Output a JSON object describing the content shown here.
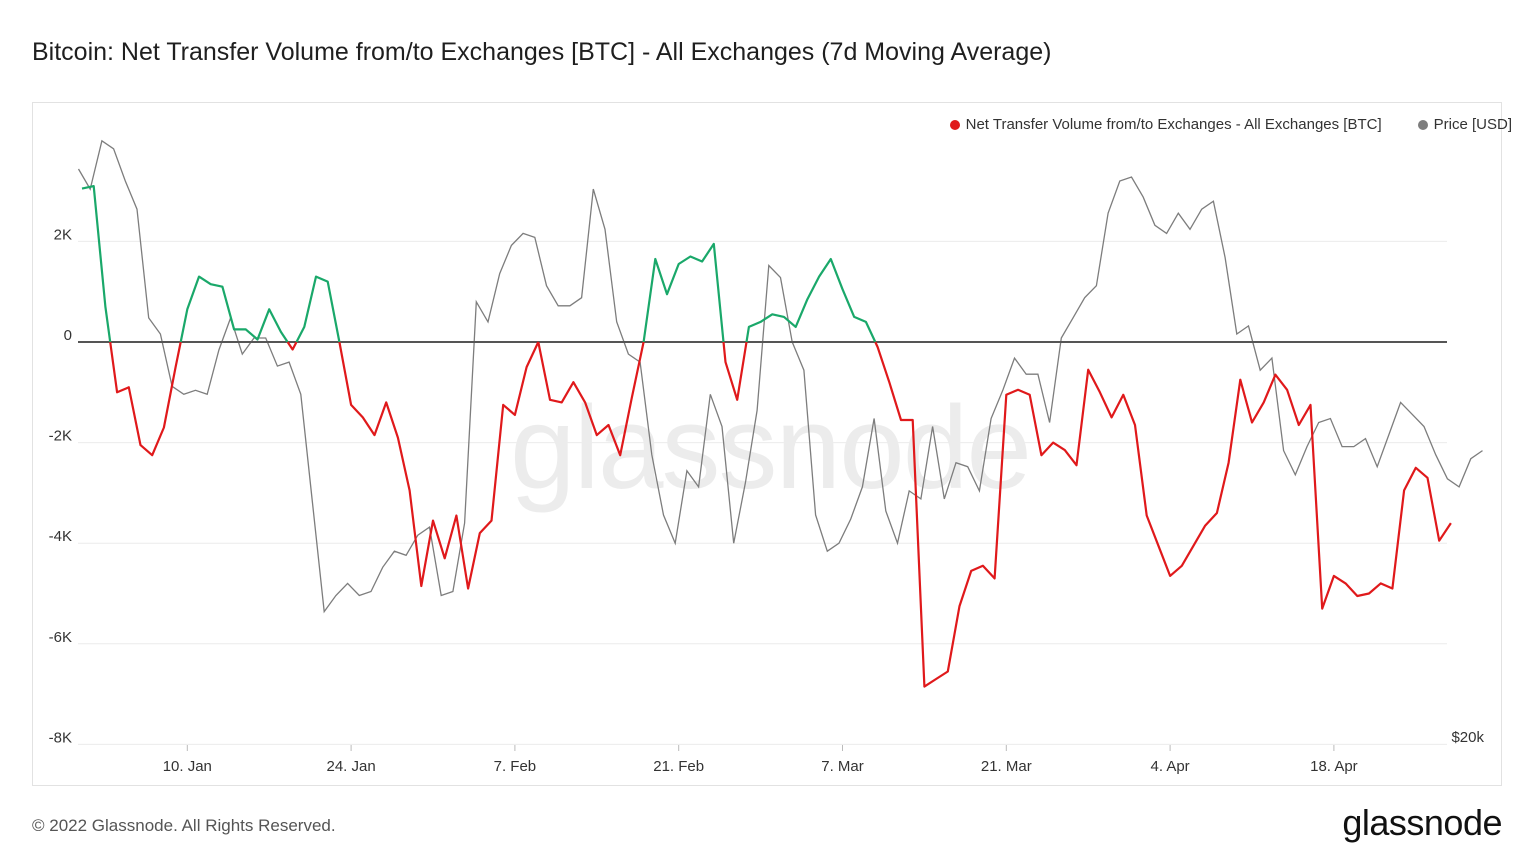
{
  "title": "Bitcoin: Net Transfer Volume from/to Exchanges [BTC] - All Exchanges (7d Moving Average)",
  "legend": [
    {
      "label": "Net Transfer Volume from/to Exchanges - All Exchanges [BTC]",
      "color": "#e0191b"
    },
    {
      "label": "Price [USD]",
      "color": "#7d7d7d"
    }
  ],
  "footer": "© 2022 Glassnode. All Rights Reserved.",
  "brand": "glassnode",
  "watermark": "glassnode",
  "chart_data": {
    "type": "line",
    "x_start": "2022-01-01",
    "x_tick_labels": [
      "10. Jan",
      "24. Jan",
      "7. Feb",
      "21. Feb",
      "7. Mar",
      "21. Mar",
      "4. Apr",
      "18. Apr"
    ],
    "x_tick_dates": [
      "2022-01-10",
      "2022-01-24",
      "2022-02-07",
      "2022-02-21",
      "2022-03-07",
      "2022-03-21",
      "2022-04-04",
      "2022-04-18"
    ],
    "y_ticks": [
      2000,
      0,
      -2000,
      -4000,
      -6000,
      -8000
    ],
    "y_tick_labels": [
      "2K",
      "0",
      "-2K",
      "-4K",
      "-6K",
      "-8K"
    ],
    "ylim": [
      -8000,
      3900
    ],
    "right_axis_label": "$20k",
    "positive_color": "#1aa86a",
    "negative_color": "#e0191b",
    "price_color": "#7d7d7d",
    "zero_line_color": "#555555",
    "series": [
      {
        "name": "Net Transfer Volume from/to Exchanges - All Exchanges [BTC]",
        "values": [
          3050,
          3100,
          700,
          -1000,
          -900,
          -2050,
          -2250,
          -1700,
          -500,
          650,
          1300,
          1150,
          1100,
          250,
          250,
          50,
          650,
          200,
          -150,
          300,
          1300,
          1200,
          0,
          -1250,
          -1500,
          -1850,
          -1200,
          -1900,
          -2950,
          -4850,
          -3550,
          -4300,
          -3450,
          -4900,
          -3800,
          -3550,
          -1250,
          -1450,
          -500,
          0,
          -1150,
          -1200,
          -800,
          -1200,
          -1850,
          -1650,
          -2250,
          -1100,
          0,
          1650,
          950,
          1550,
          1700,
          1600,
          1950,
          -400,
          -1150,
          300,
          400,
          550,
          500,
          300,
          850,
          1300,
          1650,
          1050,
          500,
          400,
          -100,
          -800,
          -1550,
          -1550,
          -6850,
          -6700,
          -6550,
          -5250,
          -4550,
          -4450,
          -4700,
          -1050,
          -950,
          -1050,
          -2250,
          -2000,
          -2150,
          -2450,
          -550,
          -1000,
          -1500,
          -1050,
          -1650,
          -3450,
          -4050,
          -4650,
          -4450,
          -4050,
          -3650,
          -3400,
          -2400,
          -750,
          -1600,
          -1200,
          -650,
          -950,
          -1650,
          -1250,
          -5300,
          -4650,
          -4800,
          -5050,
          -5000,
          -4800,
          -4900,
          -2950,
          -2500,
          -2700,
          -3950,
          -3600
        ]
      },
      {
        "name": "Price [USD]",
        "values": [
          47300,
          46800,
          48000,
          47800,
          47000,
          46300,
          43600,
          43200,
          41900,
          41700,
          41800,
          41700,
          42800,
          43600,
          42700,
          43100,
          43100,
          42400,
          42500,
          41700,
          39000,
          36300,
          36700,
          37000,
          36700,
          36800,
          37400,
          37800,
          37700,
          38200,
          38400,
          36700,
          36800,
          38500,
          44000,
          43500,
          44700,
          45400,
          45700,
          45600,
          44400,
          43900,
          43900,
          44100,
          46800,
          45800,
          43500,
          42700,
          42500,
          40200,
          38700,
          38000,
          39800,
          39400,
          41700,
          40900,
          38000,
          39500,
          41300,
          44900,
          44600,
          43000,
          42300,
          38700,
          37800,
          38000,
          38600,
          39400,
          41100,
          38800,
          38000,
          39300,
          39100,
          40900,
          39100,
          40000,
          39900,
          39300,
          41100,
          41800,
          42600,
          42200,
          42200,
          41000,
          43100,
          43600,
          44100,
          44400,
          46200,
          47000,
          47100,
          46600,
          45900,
          45700,
          46200,
          45800,
          46300,
          46500,
          45100,
          43200,
          43400,
          42300,
          42600,
          40300,
          39700,
          40400,
          41000,
          41100,
          40400,
          40400,
          40600,
          39900,
          40700,
          41500,
          41200,
          40900,
          40200,
          39600,
          39400,
          40100,
          40300
        ]
      }
    ],
    "price_axis_map": {
      "price_at_zero": 43000,
      "price_per_2k": 2500
    }
  }
}
